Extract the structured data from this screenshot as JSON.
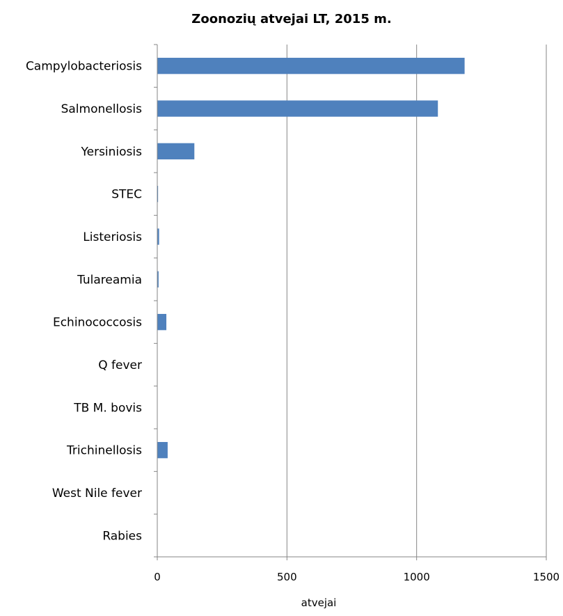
{
  "chart_data": {
    "type": "bar",
    "orientation": "horizontal",
    "title": "Zoonozių atvejai LT, 2015 m.",
    "xlabel": "atvejai",
    "ylabel": "",
    "xlim": [
      0,
      1500
    ],
    "xticks": [
      "0",
      "500",
      "1000",
      "1500"
    ],
    "grid": true,
    "legend": "none",
    "bar_color": "#4F81BD",
    "categories": [
      "Campylobacteriosis",
      "Salmonellosis",
      "Yersiniosis",
      "STEC",
      "Listeriosis",
      "Tulareamia",
      "Echinococcosis",
      "Q fever",
      "TB M. bovis",
      "Trichinellosis",
      "West Nile fever",
      "Rabies"
    ],
    "values": [
      1185,
      1082,
      143,
      3,
      7,
      5,
      35,
      0,
      0,
      40,
      0,
      0
    ]
  }
}
